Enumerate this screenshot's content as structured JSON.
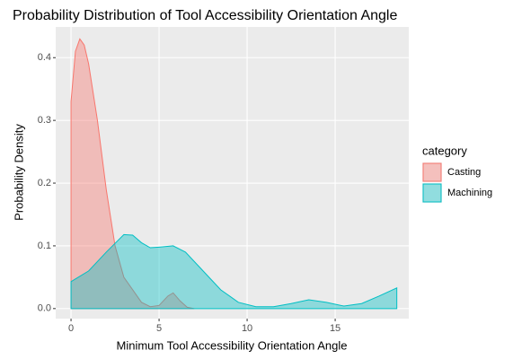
{
  "chart_data": {
    "type": "density",
    "title": "Probability Distribution of Tool Accessibility Orientation Angle",
    "x_label": "Minimum Tool Accessibility Orientation Angle",
    "y_label": "Probability Density",
    "legend_title": "category",
    "legend_position": "right",
    "grid": true,
    "xlim": [
      -0.87,
      19.18
    ],
    "ylim": [
      -0.016,
      0.449
    ],
    "xticks": [
      0,
      5,
      10,
      15
    ],
    "yticks": [
      {
        "value": 0,
        "label": "0.0"
      },
      0.1,
      0.2,
      0.3,
      0.4
    ],
    "series": [
      {
        "name": "Casting",
        "color": "#F8766D",
        "x": [
          0,
          0.25,
          0.5,
          0.75,
          1,
          1.5,
          2,
          2.5,
          3,
          3.5,
          4,
          4.5,
          5,
          5.5,
          5.8,
          6.2,
          6.6,
          7
        ],
        "values": [
          0.33,
          0.41,
          0.43,
          0.42,
          0.39,
          0.3,
          0.19,
          0.1,
          0.05,
          0.03,
          0.01,
          0.003,
          0.005,
          0.02,
          0.025,
          0.012,
          0.002,
          0
        ]
      },
      {
        "name": "Machining",
        "color": "#00BFC4",
        "x": [
          0,
          1,
          2,
          3,
          3.5,
          4,
          4.5,
          5,
          5.8,
          6.5,
          7.5,
          8.5,
          9.5,
          10.5,
          11.5,
          12.5,
          13.5,
          14.5,
          15.5,
          16.5,
          17.5,
          18.5
        ],
        "values": [
          0.043,
          0.06,
          0.09,
          0.118,
          0.117,
          0.105,
          0.097,
          0.098,
          0.1,
          0.09,
          0.06,
          0.03,
          0.01,
          0.003,
          0.003,
          0.008,
          0.014,
          0.01,
          0.004,
          0.008,
          0.02,
          0.033
        ]
      }
    ]
  }
}
